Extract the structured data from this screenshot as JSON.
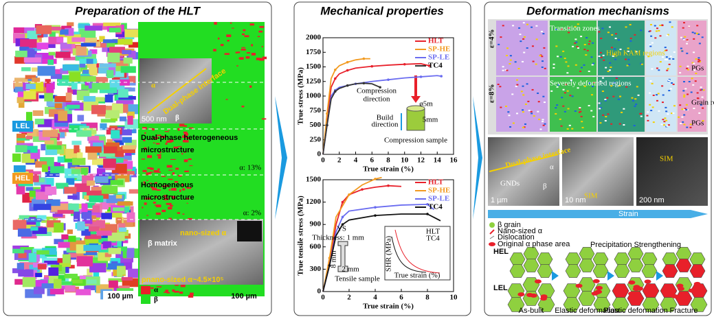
{
  "panels": [
    {
      "title": "Preparation of the HLT",
      "labels": {
        "lel": "LEL",
        "hel": "HEL"
      },
      "inset_top": {
        "interface": "Dual-phase interface",
        "alpha": "α",
        "beta": "β",
        "scale": "500 nm"
      },
      "dual": {
        "lines": [
          "Dual-phase heterogeneous",
          "microstructure"
        ],
        "fraction": "α: 13%"
      },
      "homo": {
        "lines": [
          "Homogeneous",
          "microstructure"
        ],
        "fraction": "α: 2%"
      },
      "inset_bottom": {
        "nano": "nano-sized α",
        "matrix": "β matrix",
        "density": "ρnano-sized α~4.5×10⁵"
      },
      "scale_left": "100 µm",
      "scale_right": "100 µm",
      "legend": [
        "α",
        "β"
      ]
    },
    {
      "title": "Mechanical properties"
    },
    {
      "title": "Deformation mechanisms",
      "strains": [
        "ε=4%",
        "ε=8%"
      ],
      "regions": [
        "Transition zones",
        "High KAM regions",
        "Severely deformed regions"
      ],
      "tags": [
        "PGs",
        "Grain rotation",
        "PGs"
      ],
      "tem": {
        "interface": "Dual-phase interface",
        "gnd": "GNDs",
        "alpha": "α",
        "beta": "β",
        "sim": "SIM",
        "sim2": "SIM",
        "scales": [
          "1 µm",
          "10 nm",
          "200 nm"
        ]
      },
      "strain_arrow": "Strain",
      "legend": [
        "β grain",
        "Nano-sized α",
        "Dislocation",
        "Original α phase area"
      ],
      "rows": [
        "HEL",
        "LEL"
      ],
      "stages": [
        "As-bulit",
        "Elastic deformation",
        "Plastic deformation",
        "Fracture"
      ],
      "stage_note": "Precipitation Strengthening"
    }
  ],
  "chart_data": [
    {
      "type": "line",
      "xlabel": "True strain (%)",
      "ylabel": "True stress (MPa)",
      "xlim": [
        0,
        16
      ],
      "xticks": [
        0,
        2,
        4,
        6,
        8,
        10,
        12,
        14,
        16
      ],
      "ylim": [
        0,
        2000
      ],
      "yticks": [
        0,
        250,
        500,
        750,
        1000,
        1250,
        1500,
        1750,
        2000
      ],
      "legend": "upper right",
      "series": [
        {
          "name": "HLT",
          "color": "#e8202a",
          "x": [
            0,
            0.5,
            1,
            1.5,
            2,
            3,
            4,
            6,
            8,
            10,
            12,
            13
          ],
          "values": [
            0,
            600,
            1150,
            1300,
            1380,
            1440,
            1480,
            1510,
            1530,
            1545,
            1555,
            1520
          ]
        },
        {
          "name": "SP-HE",
          "color": "#f29a1f",
          "x": [
            0,
            0.5,
            1,
            1.5,
            2,
            3,
            4,
            5,
            5.8
          ],
          "values": [
            0,
            700,
            1300,
            1450,
            1520,
            1580,
            1620,
            1640,
            1640
          ]
        },
        {
          "name": "SP-LE",
          "color": "#6a6cf0",
          "x": [
            0,
            0.5,
            1,
            1.5,
            2,
            4,
            6,
            8,
            10,
            12,
            14,
            14.5
          ],
          "values": [
            0,
            500,
            1000,
            1100,
            1150,
            1210,
            1250,
            1280,
            1310,
            1330,
            1350,
            1340
          ]
        },
        {
          "name": "TC4",
          "color": "#333333",
          "x": [
            0,
            0.5,
            1,
            1.5,
            2,
            3,
            4,
            5,
            6,
            7
          ],
          "values": [
            0,
            500,
            950,
            1080,
            1130,
            1180,
            1210,
            1220,
            1210,
            1150
          ]
        }
      ],
      "annotations": [
        "Compression",
        "direction",
        "ø5m",
        "Build",
        "direction",
        "5mm",
        "Compression sample"
      ]
    },
    {
      "type": "line",
      "xlabel": "True  strain (%)",
      "ylabel": "True tensile stress (MPa)",
      "xlim": [
        0,
        10
      ],
      "xticks": [
        0,
        2,
        4,
        6,
        8,
        10
      ],
      "ylim": [
        0,
        1500
      ],
      "yticks": [
        0,
        300,
        600,
        900,
        1200,
        1500
      ],
      "legend": "upper right",
      "series": [
        {
          "name": "HLT",
          "color": "#e8202a",
          "x": [
            0,
            0.5,
            1,
            1.5,
            2,
            3,
            4,
            5,
            6
          ],
          "values": [
            0,
            400,
            900,
            1200,
            1300,
            1370,
            1400,
            1420,
            1410
          ]
        },
        {
          "name": "SP-HE",
          "color": "#f29a1f",
          "x": [
            0,
            0.5,
            1,
            2,
            3,
            4,
            4.5
          ],
          "values": [
            0,
            450,
            1000,
            1300,
            1430,
            1510,
            1530
          ]
        },
        {
          "name": "SP-LE",
          "color": "#6a6cf0",
          "x": [
            0,
            0.5,
            1,
            1.5,
            2,
            4,
            6,
            8,
            8.5
          ],
          "values": [
            0,
            350,
            800,
            1000,
            1080,
            1130,
            1160,
            1170,
            1100
          ]
        },
        {
          "name": "TC4",
          "color": "#111111",
          "x": [
            0,
            0.5,
            1,
            1.5,
            2,
            4,
            6,
            8,
            9
          ],
          "values": [
            0,
            350,
            750,
            900,
            960,
            1020,
            1040,
            1040,
            950
          ]
        }
      ],
      "annotations": [
        "YS",
        "Thickness: 1 mm",
        "8 mm",
        "2 mm",
        "Tensile sample",
        "HLT",
        "TC4",
        "True strain (%)",
        "SHR (MPa)"
      ]
    }
  ]
}
